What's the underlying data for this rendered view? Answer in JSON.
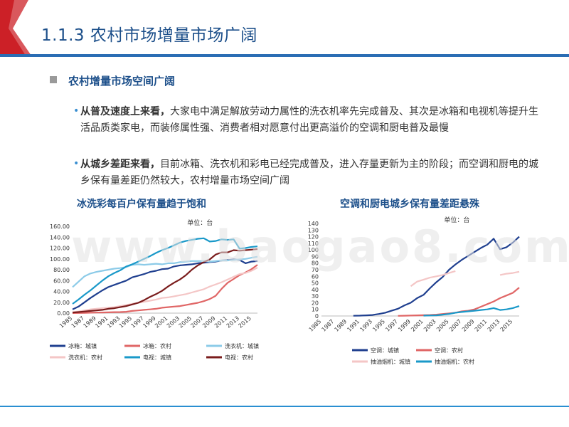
{
  "slide": {
    "title": "1.1.3 农村市场增量市场广阔",
    "heading": "农村增量市场空间广阔",
    "bullets": [
      {
        "lead": "从普及速度上来看，",
        "text": "大家电中满足解放劳动力属性的洗衣机率先完成普及、其次是冰箱和电视机等提升生活品质类家电，而装修属性强、消费者相对愿意付出更高溢价的空调和厨电普及最慢"
      },
      {
        "lead": "从城乡差距来看，",
        "text": "目前冰箱、洗衣机和彩电已经完成普及，进入存量更新为主的阶段；而空调和厨电的城乡保有量差距仍然较大，农村增量市场空间广阔"
      }
    ],
    "watermark": "www.baogao8.com",
    "colors": {
      "brand_red": "#cc2027",
      "title_blue": "#1c4f8a",
      "rule_blue": "#2a6db4"
    }
  },
  "chart_data": [
    {
      "type": "line",
      "title": "冰洗彩每百户保有量趋于饱和",
      "unit_label": "单位：台",
      "ylim": [
        0,
        160
      ],
      "yticks": [
        "0.00",
        "20.00",
        "40.00",
        "60.00",
        "80.00",
        "100.00",
        "120.00",
        "140.00",
        "160.00"
      ],
      "xtick_labels": [
        "1985",
        "1987",
        "1989",
        "1991",
        "1993",
        "1995",
        "1997",
        "1999",
        "2001",
        "2003",
        "2005",
        "2007",
        "2009",
        "2011",
        "2013",
        "2015"
      ],
      "x": [
        1985,
        1986,
        1987,
        1988,
        1989,
        1990,
        1991,
        1992,
        1993,
        1994,
        1995,
        1996,
        1997,
        1998,
        1999,
        2000,
        2001,
        2002,
        2003,
        2004,
        2005,
        2006,
        2007,
        2008,
        2009,
        2010,
        2011,
        2012,
        2013,
        2014,
        2015,
        2016
      ],
      "legend_position": "bottom",
      "series": [
        {
          "name": "冰箱：城镇",
          "color": "#1f3f8f",
          "values": [
            7,
            12,
            20,
            28,
            35,
            42,
            48,
            52,
            56,
            60,
            66,
            69,
            72,
            76,
            78,
            81,
            82,
            86,
            88,
            89,
            90,
            92,
            93,
            94,
            95,
            97,
            98,
            99,
            98,
            92,
            95,
            96
          ]
        },
        {
          "name": "冰箱：农村",
          "color": "#e06666",
          "values": [
            0.1,
            0.3,
            0.5,
            0.8,
            1,
            1.2,
            1.5,
            1.8,
            2,
            2.5,
            4,
            5,
            6,
            7,
            8,
            10,
            11,
            12,
            13,
            15,
            17,
            19,
            22,
            26,
            32,
            45,
            56,
            63,
            70,
            75,
            81,
            89
          ]
        },
        {
          "name": "洗衣机：城镇",
          "color": "#8ccbe8",
          "values": [
            48,
            58,
            68,
            73,
            76,
            78,
            80,
            82,
            83,
            85,
            89,
            90,
            89,
            90,
            91,
            90,
            92,
            92,
            94,
            95,
            96,
            96,
            96,
            95,
            96,
            97,
            97,
            98,
            99,
            100,
            102,
            104
          ]
        },
        {
          "name": "洗衣机：农村",
          "color": "#f4c6c6",
          "values": [
            2,
            3,
            5,
            7,
            8,
            9,
            10,
            11,
            13,
            15,
            17,
            19,
            21,
            23,
            25,
            28,
            29,
            31,
            33,
            35,
            38,
            41,
            44,
            49,
            53,
            57,
            62,
            67,
            72,
            74,
            78,
            84
          ]
        },
        {
          "name": "电视：城镇",
          "color": "#1a99c9",
          "values": [
            17,
            25,
            34,
            42,
            51,
            60,
            68,
            74,
            79,
            86,
            90,
            95,
            100,
            105,
            111,
            116,
            120,
            125,
            130,
            133,
            135,
            137,
            138,
            132,
            133,
            136,
            135,
            136,
            119,
            120,
            122,
            123
          ]
        },
        {
          "name": "电视：农村",
          "color": "#7a1c1c",
          "values": [
            1,
            2,
            3,
            4,
            5,
            6,
            8,
            9,
            11,
            13,
            16,
            19,
            24,
            30,
            35,
            41,
            49,
            56,
            62,
            70,
            80,
            88,
            94,
            99,
            108,
            112,
            112,
            116,
            115,
            116,
            117,
            118
          ]
        }
      ]
    },
    {
      "type": "line",
      "title": "空调和厨电城乡保有量差距悬殊",
      "unit_label": "单位：台",
      "ylim": [
        0,
        140
      ],
      "yticks": [
        "0",
        "10",
        "20",
        "30",
        "40",
        "50",
        "60",
        "70",
        "80",
        "90",
        "100",
        "110",
        "120",
        "130",
        "140"
      ],
      "xtick_labels": [
        "1985",
        "1987",
        "1989",
        "1991",
        "1993",
        "1995",
        "1997",
        "1999",
        "2001",
        "2003",
        "2005",
        "2007",
        "2009",
        "2011",
        "2013",
        "2015"
      ],
      "x": [
        1985,
        1986,
        1987,
        1988,
        1989,
        1990,
        1991,
        1992,
        1993,
        1994,
        1995,
        1996,
        1997,
        1998,
        1999,
        2000,
        2001,
        2002,
        2003,
        2004,
        2005,
        2006,
        2007,
        2008,
        2009,
        2010,
        2011,
        2012,
        2013,
        2014,
        2015,
        2016
      ],
      "legend_position": "bottom",
      "series": [
        {
          "name": "空调：城镇",
          "color": "#1f3f8f",
          "values": [
            null,
            null,
            null,
            null,
            null,
            0.3,
            0.5,
            1,
            1.5,
            3,
            5,
            8,
            11,
            16,
            20,
            27,
            32,
            42,
            51,
            59,
            70,
            78,
            85,
            91,
            97,
            103,
            108,
            117,
            101,
            104,
            111,
            120
          ]
        },
        {
          "name": "空调：农村",
          "color": "#e06666",
          "values": [
            null,
            null,
            null,
            null,
            null,
            null,
            null,
            null,
            null,
            null,
            null,
            null,
            0.2,
            0.4,
            0.6,
            1,
            1.2,
            1.5,
            2,
            3,
            4,
            5,
            7,
            8,
            10,
            14,
            18,
            22,
            27,
            31,
            35,
            43
          ]
        },
        {
          "name": "抽油烟机：城镇",
          "color": "#f4c6c6",
          "values": [
            null,
            null,
            null,
            null,
            null,
            null,
            null,
            null,
            null,
            null,
            null,
            null,
            null,
            null,
            45,
            52,
            55,
            58,
            60,
            62,
            65,
            68,
            null,
            null,
            null,
            null,
            null,
            null,
            62,
            64,
            65,
            67
          ]
        },
        {
          "name": "抽油烟机：农村",
          "color": "#1a99c9",
          "values": [
            null,
            null,
            null,
            null,
            null,
            null,
            null,
            null,
            null,
            null,
            null,
            null,
            null,
            null,
            null,
            null,
            0.5,
            0.8,
            1,
            2,
            3,
            5,
            6,
            7,
            8,
            9,
            10,
            12,
            9,
            10,
            12,
            15
          ]
        }
      ]
    }
  ]
}
